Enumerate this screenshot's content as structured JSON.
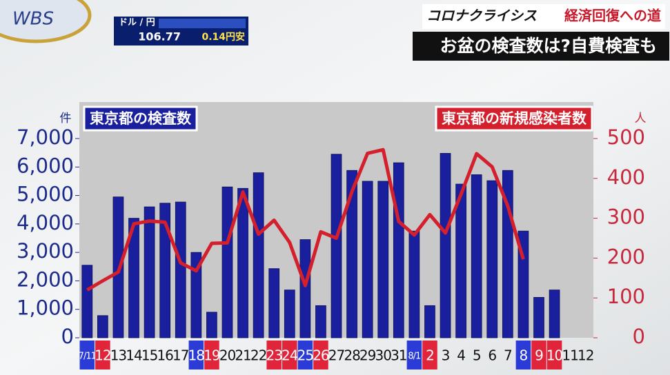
{
  "header": {
    "logo": "WBS",
    "ticker_pair": "ドル / 円",
    "ticker_rate": "106.77",
    "ticker_change": "0.14円安",
    "program": "コロナクライシス",
    "segment": "経済回復への道",
    "subtitle": "お盆の検査数は?自費検査も"
  },
  "chart_data": {
    "type": "bar-line",
    "y_label": "件",
    "y2_label": "人",
    "categories": [
      "7/11",
      "12",
      "13",
      "14",
      "15",
      "16",
      "17",
      "18",
      "19",
      "20",
      "21",
      "22",
      "23",
      "24",
      "25",
      "26",
      "27",
      "28",
      "29",
      "30",
      "31",
      "8/1",
      "2",
      "3",
      "4",
      "5",
      "6",
      "7",
      "8",
      "9",
      "10",
      "11",
      "12"
    ],
    "category_label_colors": [
      "#2a3bd6",
      "#e0243a",
      null,
      null,
      null,
      null,
      null,
      "#2a3bd6",
      "#e0243a",
      null,
      null,
      null,
      "#e0243a",
      "#e0243a",
      "#2a3bd6",
      "#e0243a",
      null,
      null,
      null,
      null,
      null,
      "#2a3bd6",
      "#e0243a",
      null,
      null,
      null,
      null,
      null,
      "#2a3bd6",
      "#e0243a",
      "#e0243a",
      null,
      null
    ],
    "series": [
      {
        "name": "東京都の検査数",
        "color": "#1a1f9e",
        "values": [
          2550,
          780,
          4950,
          4200,
          4600,
          4730,
          4770,
          3000,
          900,
          5300,
          5250,
          5800,
          2430,
          1680,
          3450,
          1130,
          6450,
          5880,
          5500,
          5500,
          6150,
          3750,
          1130,
          6480,
          5400,
          5730,
          5520,
          5880,
          3750,
          1420,
          1680,
          null,
          null
        ]
      },
      {
        "name": "東京都の新規感染者数",
        "color": "#d41f2c",
        "axis": "y2",
        "values": [
          120,
          143,
          165,
          286,
          293,
          290,
          188,
          168,
          237,
          238,
          366,
          260,
          295,
          239,
          131,
          266,
          250,
          367,
          463,
          472,
          292,
          258,
          309,
          263,
          360,
          462,
          429,
          331,
          197,
          null,
          null,
          null,
          null
        ]
      }
    ],
    "ylim": [
      0,
      7000
    ],
    "yticks": [
      0,
      {
        "value": 1000,
        "label": "1,000"
      },
      {
        "value": 2000,
        "label": "2,000"
      },
      {
        "value": 3000,
        "label": "3,000"
      },
      {
        "value": 4000,
        "label": "4,000"
      },
      {
        "value": 5000,
        "label": "5,000"
      },
      {
        "value": 6000,
        "label": "6,000"
      },
      {
        "value": 7000,
        "label": "7,000"
      }
    ],
    "y2lim": [
      0,
      500
    ],
    "y2ticks": [
      0,
      100,
      200,
      300,
      400,
      500
    ]
  }
}
